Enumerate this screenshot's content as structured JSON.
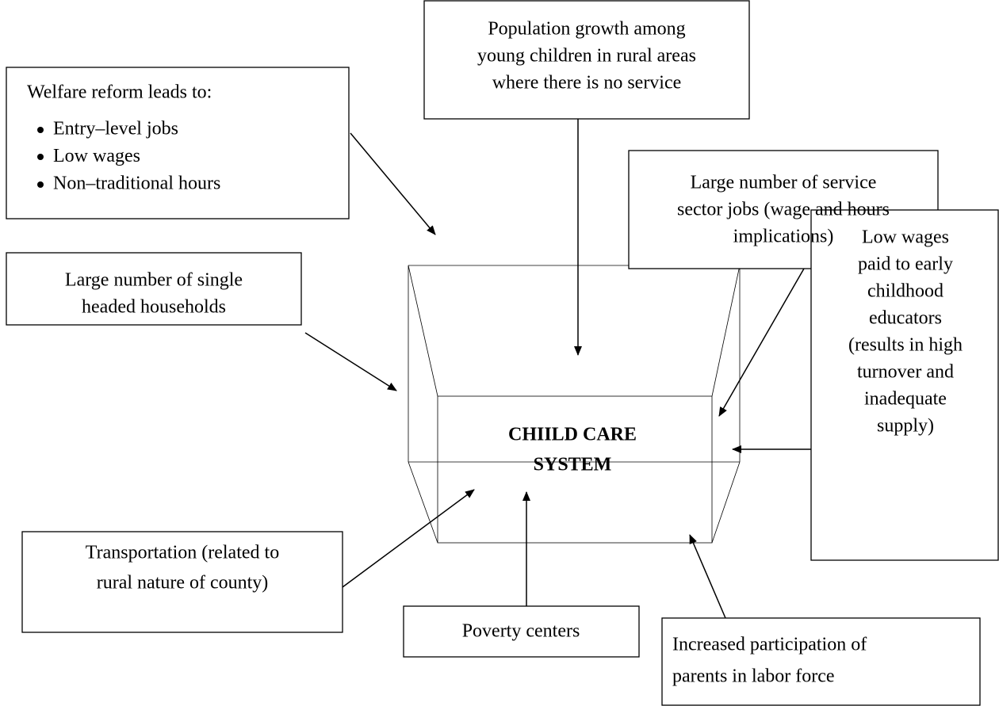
{
  "center": {
    "lines": [
      "CHIILD CARE",
      "SYSTEM"
    ]
  },
  "nodes": [
    {
      "lines": [
        "Welfare reform leads to:"
      ],
      "bullets": [
        "Entry–level jobs",
        "Low wages",
        "Non–traditional hours"
      ]
    },
    {
      "lines": [
        "Population growth among",
        "young children in rural areas",
        "where there is no service"
      ]
    },
    {
      "lines": [
        "Large number of service",
        "sector jobs (wage and hours",
        "implications)"
      ]
    },
    {
      "lines": [
        "Large number of single",
        "headed households"
      ]
    },
    {
      "lines": [
        "Low wages",
        "paid to early",
        "childhood",
        "educators",
        "(results in high",
        "turnover and",
        "inadequate",
        "supply)"
      ]
    },
    {
      "lines": [
        "Transportation (related to",
        "rural nature of county)"
      ]
    },
    {
      "lines": [
        "Poverty centers"
      ]
    },
    {
      "lines": [
        "Increased participation of",
        "parents in labor force"
      ]
    }
  ]
}
